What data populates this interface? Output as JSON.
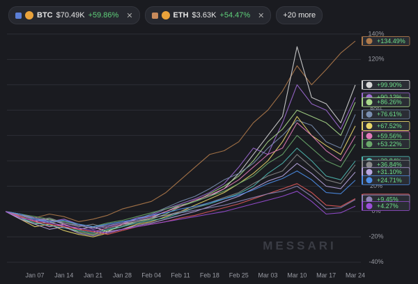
{
  "header": {
    "chips": [
      {
        "symbol": "BTC",
        "price": "$70.49K",
        "change": "+59.86%",
        "color": "#5b7fd6"
      },
      {
        "symbol": "ETH",
        "price": "$3.63K",
        "change": "+54.47%",
        "color": "#c78a5b"
      }
    ],
    "more": "+20 more"
  },
  "watermark": "MESSARI",
  "chart_data": {
    "type": "line",
    "categories": [
      null,
      null,
      "Jan 07",
      null,
      "Jan 14",
      null,
      "Jan 21",
      null,
      "Jan 28",
      null,
      "Feb 04",
      null,
      "Feb 11",
      null,
      "Feb 18",
      null,
      "Feb 25",
      null,
      "Mar 03",
      null,
      "Mar 10",
      null,
      "Mar 17",
      null,
      "Mar 24"
    ],
    "ylim": [
      -44,
      146
    ],
    "yticks": [
      {
        "value": -40,
        "label": "-40%"
      },
      {
        "value": -20,
        "label": "-20%"
      },
      {
        "value": 0,
        "label": "0%"
      },
      {
        "value": 20,
        "label": "20%"
      },
      {
        "value": 40,
        "label": "40%"
      },
      {
        "value": 60,
        "label": "60%"
      },
      {
        "value": 80,
        "label": "80%"
      },
      {
        "value": 100,
        "label": "100%"
      },
      {
        "value": 120,
        "label": "120%"
      },
      {
        "value": 140,
        "label": "140%"
      }
    ],
    "grid": true,
    "series": [
      {
        "color": "#b07a4a",
        "values": [
          0,
          -3,
          -5,
          -2,
          -4,
          -8,
          -6,
          -3,
          2,
          5,
          8,
          15,
          25,
          35,
          45,
          48,
          55,
          70,
          80,
          95,
          115,
          100,
          112,
          125,
          134.49
        ],
        "value_labels": [
          null,
          null,
          null,
          null,
          null,
          null,
          null,
          null,
          null,
          null,
          null,
          null,
          null,
          null,
          null,
          null,
          null,
          null,
          null,
          null,
          null,
          null,
          null,
          null,
          "+134.49%"
        ]
      },
      {
        "color": "#d8d8d8",
        "values": [
          0,
          -4,
          -8,
          -6,
          -10,
          -14,
          -12,
          -16,
          -10,
          -8,
          -5,
          0,
          5,
          8,
          12,
          18,
          30,
          45,
          60,
          75,
          130,
          90,
          85,
          70,
          99.9
        ],
        "value_labels": [
          null,
          null,
          null,
          null,
          null,
          null,
          null,
          null,
          null,
          null,
          null,
          null,
          null,
          null,
          null,
          null,
          null,
          null,
          null,
          null,
          null,
          null,
          null,
          null,
          "+99.90%"
        ]
      },
      {
        "color": "#a06cd5",
        "values": [
          0,
          -2,
          -5,
          -8,
          -6,
          -10,
          -14,
          -12,
          -9,
          -5,
          -3,
          2,
          6,
          10,
          15,
          22,
          35,
          50,
          45,
          70,
          100,
          85,
          80,
          65,
          90.12
        ],
        "value_labels": [
          null,
          null,
          null,
          null,
          null,
          null,
          null,
          null,
          null,
          null,
          null,
          null,
          null,
          null,
          null,
          null,
          null,
          null,
          null,
          null,
          null,
          null,
          null,
          null,
          "+90.12%"
        ]
      },
      {
        "color": "#a8d88a",
        "values": [
          0,
          -5,
          -10,
          -8,
          -12,
          -16,
          -18,
          -15,
          -12,
          -8,
          -6,
          -2,
          4,
          8,
          14,
          20,
          28,
          40,
          55,
          65,
          80,
          75,
          70,
          60,
          86.26
        ],
        "value_labels": [
          null,
          null,
          null,
          null,
          null,
          null,
          null,
          null,
          null,
          null,
          null,
          null,
          null,
          null,
          null,
          null,
          null,
          null,
          null,
          null,
          null,
          null,
          null,
          null,
          "+86.26%"
        ]
      },
      {
        "color": "#7a8fb0",
        "values": [
          0,
          -3,
          -6,
          -9,
          -7,
          -11,
          -13,
          -10,
          -8,
          -6,
          -2,
          3,
          8,
          12,
          18,
          25,
          30,
          38,
          50,
          60,
          72,
          68,
          55,
          50,
          76.61
        ],
        "value_labels": [
          null,
          null,
          null,
          null,
          null,
          null,
          null,
          null,
          null,
          null,
          null,
          null,
          null,
          null,
          null,
          null,
          null,
          null,
          null,
          null,
          null,
          null,
          null,
          null,
          "+76.61%"
        ]
      },
      {
        "color": "#e8d66a",
        "values": [
          0,
          -6,
          -12,
          -10,
          -15,
          -18,
          -20,
          -17,
          -14,
          -10,
          -8,
          -4,
          0,
          5,
          10,
          15,
          22,
          30,
          40,
          55,
          75,
          60,
          52,
          45,
          67.52
        ],
        "value_labels": [
          null,
          null,
          null,
          null,
          null,
          null,
          null,
          null,
          null,
          null,
          null,
          null,
          null,
          null,
          null,
          null,
          null,
          null,
          null,
          null,
          null,
          null,
          null,
          null,
          "+67.52%"
        ]
      },
      {
        "color": "#e07ab8",
        "values": [
          0,
          -4,
          -8,
          -12,
          -10,
          -14,
          -16,
          -13,
          -10,
          -6,
          -4,
          0,
          4,
          9,
          13,
          18,
          25,
          35,
          45,
          50,
          70,
          60,
          48,
          40,
          59.56
        ],
        "value_labels": [
          null,
          null,
          null,
          null,
          null,
          null,
          null,
          null,
          null,
          null,
          null,
          null,
          null,
          null,
          null,
          null,
          null,
          null,
          null,
          null,
          null,
          null,
          null,
          null,
          "+59.56%"
        ]
      },
      {
        "color": "#6aa86a",
        "values": [
          0,
          -2,
          -4,
          -6,
          -8,
          -10,
          -12,
          -9,
          -7,
          -4,
          -1,
          2,
          5,
          8,
          12,
          16,
          22,
          28,
          38,
          45,
          60,
          50,
          40,
          35,
          53.22
        ],
        "value_labels": [
          null,
          null,
          null,
          null,
          null,
          null,
          null,
          null,
          null,
          null,
          null,
          null,
          null,
          null,
          null,
          null,
          null,
          null,
          null,
          null,
          null,
          null,
          null,
          null,
          "+53.22%"
        ]
      },
      {
        "color": "#4fb8b0",
        "values": [
          0,
          -5,
          -9,
          -11,
          -13,
          -15,
          -17,
          -14,
          -12,
          -9,
          -7,
          -5,
          -1,
          3,
          6,
          10,
          14,
          20,
          30,
          38,
          50,
          40,
          28,
          25,
          39.84
        ],
        "value_labels": [
          null,
          null,
          null,
          null,
          null,
          null,
          null,
          null,
          null,
          null,
          null,
          null,
          null,
          null,
          null,
          null,
          null,
          null,
          null,
          null,
          null,
          null,
          null,
          null,
          "+39.84%"
        ]
      },
      {
        "color": "#8a8a8a",
        "values": [
          0,
          -3,
          -7,
          -5,
          -9,
          -12,
          -10,
          -13,
          -11,
          -8,
          -5,
          -3,
          0,
          3,
          7,
          11,
          15,
          22,
          28,
          32,
          45,
          35,
          25,
          22,
          36.84
        ],
        "value_labels": [
          null,
          null,
          null,
          null,
          null,
          null,
          null,
          null,
          null,
          null,
          null,
          null,
          null,
          null,
          null,
          null,
          null,
          null,
          null,
          null,
          null,
          null,
          null,
          null,
          "+36.84%"
        ]
      },
      {
        "color": "#b9a6e0",
        "values": [
          0,
          -6,
          -10,
          -14,
          -12,
          -17,
          -19,
          -16,
          -14,
          -11,
          -9,
          -6,
          -3,
          0,
          4,
          8,
          12,
          18,
          24,
          28,
          38,
          30,
          20,
          18,
          31.1
        ],
        "value_labels": [
          null,
          null,
          null,
          null,
          null,
          null,
          null,
          null,
          null,
          null,
          null,
          null,
          null,
          null,
          null,
          null,
          null,
          null,
          null,
          null,
          null,
          null,
          null,
          null,
          "+31.10%"
        ]
      },
      {
        "color": "#4c8ee8",
        "values": [
          0,
          -2,
          -6,
          -8,
          -7,
          -10,
          -12,
          -10,
          -8,
          -6,
          -3,
          -1,
          2,
          4,
          7,
          10,
          13,
          17,
          22,
          26,
          32,
          25,
          15,
          14,
          24.71
        ],
        "value_labels": [
          null,
          null,
          null,
          null,
          null,
          null,
          null,
          null,
          null,
          null,
          null,
          null,
          null,
          null,
          null,
          null,
          null,
          null,
          null,
          null,
          null,
          null,
          null,
          null,
          "+24.71%"
        ]
      },
      {
        "color": "#e05a5a",
        "values": [
          0,
          -4,
          -8,
          -10,
          -12,
          -14,
          -16,
          -18,
          -15,
          -12,
          -10,
          -8,
          -5,
          -3,
          0,
          3,
          6,
          10,
          14,
          18,
          22,
          15,
          5,
          4,
          10.19
        ],
        "value_labels": [
          null,
          null,
          null,
          null,
          null,
          null,
          null,
          null,
          null,
          null,
          null,
          null,
          null,
          null,
          null,
          null,
          null,
          null,
          null,
          null,
          null,
          null,
          null,
          null,
          "+10.19%"
        ]
      },
      {
        "color": "#8f86b8",
        "values": [
          0,
          -3,
          -5,
          -7,
          -9,
          -11,
          -13,
          -11,
          -9,
          -7,
          -5,
          -3,
          -1,
          1,
          3,
          5,
          8,
          11,
          14,
          16,
          20,
          12,
          2,
          3,
          9.45
        ],
        "value_labels": [
          null,
          null,
          null,
          null,
          null,
          null,
          null,
          null,
          null,
          null,
          null,
          null,
          null,
          null,
          null,
          null,
          null,
          null,
          null,
          null,
          null,
          null,
          null,
          null,
          "+9.45%"
        ]
      },
      {
        "color": "#9b4fd8",
        "values": [
          0,
          -5,
          -7,
          -9,
          -11,
          -13,
          -15,
          -17,
          -14,
          -12,
          -10,
          -8,
          -6,
          -4,
          -2,
          0,
          3,
          6,
          9,
          12,
          16,
          8,
          -2,
          -1,
          4.27
        ],
        "value_labels": [
          null,
          null,
          null,
          null,
          null,
          null,
          null,
          null,
          null,
          null,
          null,
          null,
          null,
          null,
          null,
          null,
          null,
          null,
          null,
          null,
          null,
          null,
          null,
          null,
          "+4.27%"
        ]
      }
    ]
  }
}
